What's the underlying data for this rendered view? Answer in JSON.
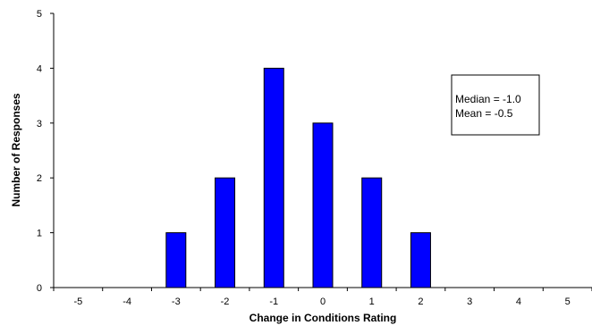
{
  "chart_data": {
    "type": "bar",
    "x_categories": [
      "-5",
      "-4",
      "-3",
      "-2",
      "-1",
      "0",
      "1",
      "2",
      "3",
      "4",
      "5"
    ],
    "values": [
      0,
      0,
      1,
      2,
      4,
      3,
      2,
      1,
      0,
      0,
      0
    ],
    "xlabel": "Change in Conditions Rating",
    "ylabel": "Number of Responses",
    "ylim": [
      0,
      5
    ],
    "y_ticks": [
      "0",
      "1",
      "2",
      "3",
      "4",
      "5"
    ],
    "grid": false,
    "bar_color": "#0000ff",
    "bar_edge_color": "#000000",
    "annotation": {
      "median": "Median = -1.0",
      "mean": "Mean = -0.5",
      "placement": "top-right"
    }
  }
}
